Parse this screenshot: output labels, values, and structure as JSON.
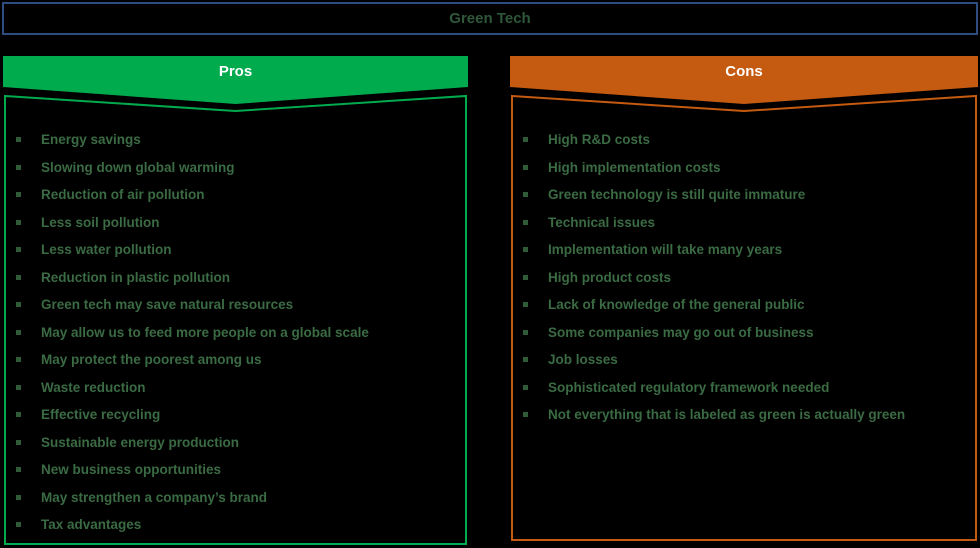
{
  "title": "Green Tech",
  "colors": {
    "background": "#000000",
    "title_border": "#2F4C80",
    "title_text": "#2E5839",
    "pros_accent": "#00AB4E",
    "cons_accent": "#C55A11",
    "list_text": "#3A6B43",
    "bullet": "#2F5B39",
    "header_text": "#FFFFFF"
  },
  "pros": {
    "label": "Pros",
    "items": [
      "Energy savings",
      "Slowing down global warming",
      "Reduction of air pollution",
      "Less soil pollution",
      "Less water pollution",
      "Reduction in plastic pollution",
      "Green tech may save natural resources",
      "May allow us to feed more people on a global scale",
      "May protect the poorest among us",
      "Waste reduction",
      "Effective recycling",
      "Sustainable energy production",
      "New business opportunities",
      "May strengthen a company’s brand",
      "Tax advantages"
    ]
  },
  "cons": {
    "label": "Cons",
    "items": [
      "High R&D costs",
      "High implementation costs",
      "Green technology is still quite immature",
      "Technical issues",
      "Implementation will take many years",
      "High product costs",
      "Lack of knowledge of the general public",
      "Some companies may go out of business",
      "Job losses",
      "Sophisticated regulatory framework needed",
      "Not everything that is labeled as green is actually green"
    ]
  }
}
